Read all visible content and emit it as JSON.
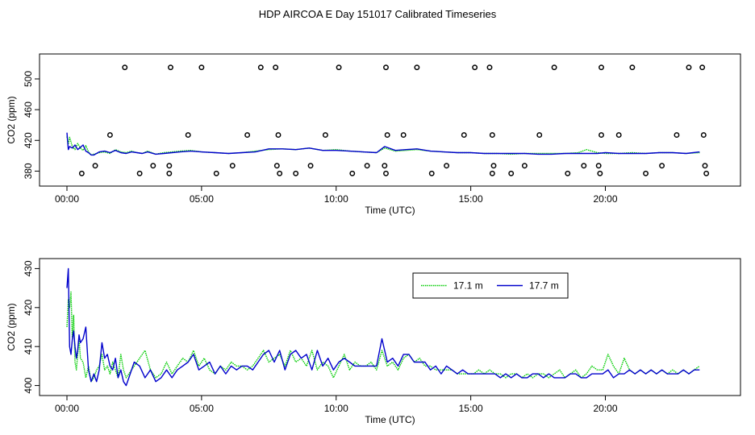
{
  "title": "HDP AIRCOA E  Day 151017  Calibrated Timeseries",
  "colors": {
    "series1": "#00cc00",
    "series2": "#0000cc"
  },
  "chart_data": [
    {
      "type": "line",
      "panel": "top",
      "xlabel": "Time (UTC)",
      "ylabel": "CO2 (ppm)",
      "xlim": [
        0,
        24
      ],
      "ylim": [
        371,
        522
      ],
      "x_ticks": [
        0,
        5,
        10,
        15,
        20
      ],
      "x_tick_labels": [
        "00:00",
        "05:00",
        "10:00",
        "15:00",
        "20:00"
      ],
      "y_ticks": [
        380,
        420,
        460,
        500
      ],
      "y_tick_labels": [
        "380",
        "420",
        "460",
        "500"
      ],
      "grid": false,
      "legend": "none",
      "series": [
        {
          "color": "#00cc00",
          "style": "dotted",
          "x": [
            0.0,
            0.05,
            0.1,
            0.2,
            0.3,
            0.4,
            0.5,
            0.6,
            0.7,
            0.8,
            0.9,
            1.0,
            1.2,
            1.4,
            1.6,
            1.8,
            2.0,
            2.2,
            2.4,
            2.6,
            2.8,
            3.0,
            3.3,
            3.6,
            3.9,
            4.2,
            4.6,
            5.0,
            5.5,
            6.0,
            6.5,
            7.0,
            7.5,
            8.0,
            8.5,
            9.0,
            9.5,
            10.0,
            10.5,
            11.0,
            11.5,
            11.8,
            12.2,
            12.6,
            13.0,
            13.5,
            14.0,
            14.5,
            15.0,
            15.5,
            16.0,
            16.5,
            17.0,
            17.5,
            18.0,
            18.5,
            19.0,
            19.3,
            19.7,
            20.0,
            20.5,
            21.0,
            21.5,
            22.0,
            22.5,
            23.0,
            23.5
          ],
          "y": [
            425,
            415,
            424,
            412,
            408,
            416,
            410,
            407,
            413,
            405,
            401,
            402,
            404,
            405,
            403,
            408,
            405,
            404,
            406,
            404,
            403,
            406,
            402,
            404,
            405,
            406,
            407,
            405,
            404,
            403,
            404,
            406,
            408,
            409,
            408,
            410,
            407,
            408,
            406,
            405,
            404,
            410,
            406,
            407,
            408,
            406,
            405,
            404,
            404,
            403,
            403,
            402,
            403,
            403,
            403,
            403,
            404,
            408,
            404,
            403,
            403,
            404,
            403,
            404,
            404,
            403,
            404
          ]
        },
        {
          "color": "#0000cc",
          "style": "solid",
          "x": [
            0.0,
            0.05,
            0.1,
            0.2,
            0.3,
            0.4,
            0.5,
            0.6,
            0.7,
            0.8,
            0.9,
            1.0,
            1.2,
            1.4,
            1.6,
            1.8,
            2.0,
            2.2,
            2.4,
            2.6,
            2.8,
            3.0,
            3.3,
            3.6,
            3.9,
            4.2,
            4.6,
            5.0,
            5.5,
            6.0,
            6.5,
            7.0,
            7.5,
            8.0,
            8.5,
            9.0,
            9.5,
            10.0,
            10.5,
            11.0,
            11.5,
            11.8,
            12.2,
            12.6,
            13.0,
            13.5,
            14.0,
            14.5,
            15.0,
            15.5,
            16.0,
            16.5,
            17.0,
            17.5,
            18.0,
            18.5,
            19.0,
            19.3,
            19.7,
            20.0,
            20.5,
            21.0,
            21.5,
            22.0,
            22.5,
            23.0,
            23.5
          ],
          "y": [
            430,
            408,
            412,
            410,
            414,
            408,
            411,
            414,
            406,
            404,
            401,
            401,
            405,
            406,
            404,
            407,
            404,
            403,
            405,
            404,
            403,
            405,
            402,
            403,
            404,
            405,
            406,
            405,
            404,
            403,
            404,
            405,
            409,
            409,
            408,
            410,
            407,
            407,
            406,
            405,
            404,
            412,
            407,
            408,
            409,
            406,
            405,
            404,
            404,
            403,
            403,
            403,
            403,
            402,
            402,
            403,
            403,
            403,
            403,
            404,
            403,
            403,
            403,
            404,
            404,
            403,
            405
          ]
        }
      ],
      "markers": {
        "style": "open-circle",
        "color": "#000000",
        "x": [
          2.15,
          3.85,
          5.0,
          7.2,
          7.75,
          10.1,
          11.85,
          13.0,
          15.15,
          15.7,
          18.1,
          19.85,
          21.0,
          23.1,
          23.6,
          0.55,
          1.05,
          1.6,
          2.7,
          3.2,
          3.8,
          3.8,
          4.5,
          5.55,
          6.15,
          6.7,
          7.85,
          7.8,
          7.9,
          8.5,
          9.05,
          9.6,
          10.6,
          11.15,
          11.8,
          11.85,
          11.9,
          12.5,
          13.55,
          14.1,
          14.75,
          15.8,
          15.85,
          15.8,
          16.5,
          17.0,
          17.55,
          18.6,
          19.2,
          19.75,
          19.8,
          19.85,
          20.5,
          21.5,
          22.1,
          22.65,
          23.65,
          23.7,
          23.75
        ],
        "y": [
          515,
          515,
          515,
          515,
          515,
          515,
          515,
          515,
          515,
          515,
          515,
          515,
          515,
          515,
          515,
          377,
          387,
          427,
          377,
          387,
          377,
          387,
          427,
          377,
          387,
          427,
          427,
          387,
          377,
          377,
          387,
          427,
          377,
          387,
          387,
          377,
          427,
          427,
          377,
          387,
          427,
          427,
          387,
          377,
          377,
          387,
          427,
          377,
          387,
          387,
          377,
          427,
          427,
          377,
          387,
          427,
          427,
          387,
          377
        ]
      }
    },
    {
      "type": "line",
      "panel": "bottom",
      "xlabel": "Time (UTC)",
      "ylabel": "CO2 (ppm)",
      "xlim": [
        0,
        24
      ],
      "ylim": [
        399.5,
        430.5
      ],
      "x_ticks": [
        0,
        5,
        10,
        15,
        20
      ],
      "x_tick_labels": [
        "00:00",
        "05:00",
        "10:00",
        "15:00",
        "20:00"
      ],
      "y_ticks": [
        400,
        410,
        420,
        430
      ],
      "y_tick_labels": [
        "400",
        "410",
        "420",
        "430"
      ],
      "grid": false,
      "legend": "top-right",
      "series": [
        {
          "name": "17.1 m",
          "color": "#00cc00",
          "style": "dotted",
          "x": [
            0.0,
            0.05,
            0.1,
            0.15,
            0.2,
            0.25,
            0.3,
            0.35,
            0.4,
            0.45,
            0.5,
            0.6,
            0.7,
            0.8,
            0.9,
            1.0,
            1.1,
            1.2,
            1.3,
            1.4,
            1.5,
            1.6,
            1.7,
            1.8,
            1.9,
            2.0,
            2.1,
            2.2,
            2.3,
            2.5,
            2.7,
            2.9,
            3.1,
            3.3,
            3.5,
            3.7,
            3.9,
            4.1,
            4.3,
            4.5,
            4.7,
            4.9,
            5.1,
            5.3,
            5.5,
            5.7,
            5.9,
            6.1,
            6.3,
            6.5,
            6.7,
            6.9,
            7.1,
            7.3,
            7.5,
            7.7,
            7.9,
            8.1,
            8.3,
            8.5,
            8.7,
            8.9,
            9.1,
            9.3,
            9.5,
            9.7,
            9.9,
            10.1,
            10.3,
            10.5,
            10.7,
            10.9,
            11.1,
            11.3,
            11.5,
            11.7,
            11.9,
            12.1,
            12.3,
            12.5,
            12.7,
            12.9,
            13.1,
            13.3,
            13.5,
            13.7,
            13.9,
            14.1,
            14.3,
            14.5,
            14.7,
            14.9,
            15.1,
            15.3,
            15.5,
            15.7,
            15.9,
            16.1,
            16.3,
            16.5,
            16.7,
            16.9,
            17.1,
            17.3,
            17.5,
            17.7,
            17.9,
            18.1,
            18.3,
            18.5,
            18.7,
            18.9,
            19.1,
            19.3,
            19.5,
            19.7,
            19.9,
            20.1,
            20.3,
            20.5,
            20.7,
            20.9,
            21.1,
            21.3,
            21.5,
            21.7,
            21.9,
            22.1,
            22.3,
            22.5,
            22.7,
            22.9,
            23.1,
            23.3,
            23.5
          ],
          "y": [
            415,
            422,
            420,
            424,
            412,
            418,
            406,
            404,
            408,
            412,
            407,
            406,
            402,
            405,
            401,
            402,
            404,
            405,
            408,
            404,
            405,
            403,
            406,
            404,
            402,
            408,
            404,
            402,
            403,
            405,
            407,
            409,
            404,
            402,
            403,
            406,
            403,
            405,
            407,
            406,
            409,
            405,
            407,
            404,
            403,
            405,
            404,
            406,
            405,
            405,
            404,
            405,
            407,
            409,
            406,
            407,
            408,
            405,
            409,
            406,
            407,
            405,
            409,
            404,
            406,
            405,
            402,
            405,
            408,
            404,
            406,
            405,
            405,
            406,
            404,
            409,
            405,
            406,
            404,
            407,
            408,
            406,
            407,
            405,
            405,
            404,
            404,
            404,
            404,
            403,
            403,
            403,
            403,
            404,
            403,
            404,
            403,
            403,
            402,
            403,
            403,
            402,
            403,
            402,
            403,
            403,
            402,
            403,
            404,
            402,
            403,
            404,
            402,
            403,
            405,
            404,
            404,
            408,
            405,
            403,
            407,
            404,
            403,
            404,
            403,
            404,
            403,
            404,
            403,
            404,
            403,
            404,
            403,
            404,
            405
          ]
        },
        {
          "name": "17.7 m",
          "color": "#0000cc",
          "style": "solid",
          "x": [
            0.0,
            0.05,
            0.1,
            0.15,
            0.2,
            0.25,
            0.3,
            0.35,
            0.4,
            0.45,
            0.5,
            0.6,
            0.7,
            0.8,
            0.9,
            1.0,
            1.1,
            1.2,
            1.3,
            1.4,
            1.5,
            1.6,
            1.7,
            1.8,
            1.9,
            2.0,
            2.1,
            2.2,
            2.3,
            2.5,
            2.7,
            2.9,
            3.1,
            3.3,
            3.5,
            3.7,
            3.9,
            4.1,
            4.3,
            4.5,
            4.7,
            4.9,
            5.1,
            5.3,
            5.5,
            5.7,
            5.9,
            6.1,
            6.3,
            6.5,
            6.7,
            6.9,
            7.1,
            7.3,
            7.5,
            7.7,
            7.9,
            8.1,
            8.3,
            8.5,
            8.7,
            8.9,
            9.1,
            9.3,
            9.5,
            9.7,
            9.9,
            10.1,
            10.3,
            10.5,
            10.7,
            10.9,
            11.1,
            11.3,
            11.5,
            11.7,
            11.9,
            12.1,
            12.3,
            12.5,
            12.7,
            12.9,
            13.1,
            13.3,
            13.5,
            13.7,
            13.9,
            14.1,
            14.3,
            14.5,
            14.7,
            14.9,
            15.1,
            15.3,
            15.5,
            15.7,
            15.9,
            16.1,
            16.3,
            16.5,
            16.7,
            16.9,
            17.1,
            17.3,
            17.5,
            17.7,
            17.9,
            18.1,
            18.3,
            18.5,
            18.7,
            18.9,
            19.1,
            19.3,
            19.5,
            19.7,
            19.9,
            20.1,
            20.3,
            20.5,
            20.7,
            20.9,
            21.1,
            21.3,
            21.5,
            21.7,
            21.9,
            22.1,
            22.3,
            22.5,
            22.7,
            22.9,
            23.1,
            23.3,
            23.5
          ],
          "y": [
            425,
            430,
            410,
            408,
            412,
            414,
            410,
            407,
            409,
            413,
            411,
            412,
            415,
            404,
            401,
            403,
            401,
            404,
            411,
            407,
            408,
            405,
            404,
            407,
            402,
            404,
            401,
            400,
            402,
            406,
            405,
            402,
            404,
            401,
            402,
            404,
            402,
            404,
            405,
            406,
            408,
            404,
            405,
            406,
            403,
            405,
            403,
            405,
            404,
            405,
            405,
            404,
            406,
            408,
            409,
            406,
            409,
            404,
            408,
            409,
            407,
            408,
            404,
            409,
            405,
            407,
            404,
            406,
            407,
            406,
            405,
            405,
            405,
            405,
            405,
            412,
            406,
            407,
            405,
            408,
            408,
            406,
            406,
            406,
            404,
            405,
            403,
            405,
            404,
            403,
            404,
            403,
            403,
            403,
            403,
            403,
            403,
            402,
            403,
            402,
            403,
            402,
            402,
            403,
            403,
            402,
            403,
            402,
            402,
            402,
            403,
            403,
            402,
            402,
            403,
            403,
            403,
            404,
            402,
            403,
            403,
            404,
            403,
            404,
            403,
            404,
            403,
            404,
            403,
            403,
            403,
            404,
            403,
            404,
            404
          ]
        }
      ]
    }
  ]
}
